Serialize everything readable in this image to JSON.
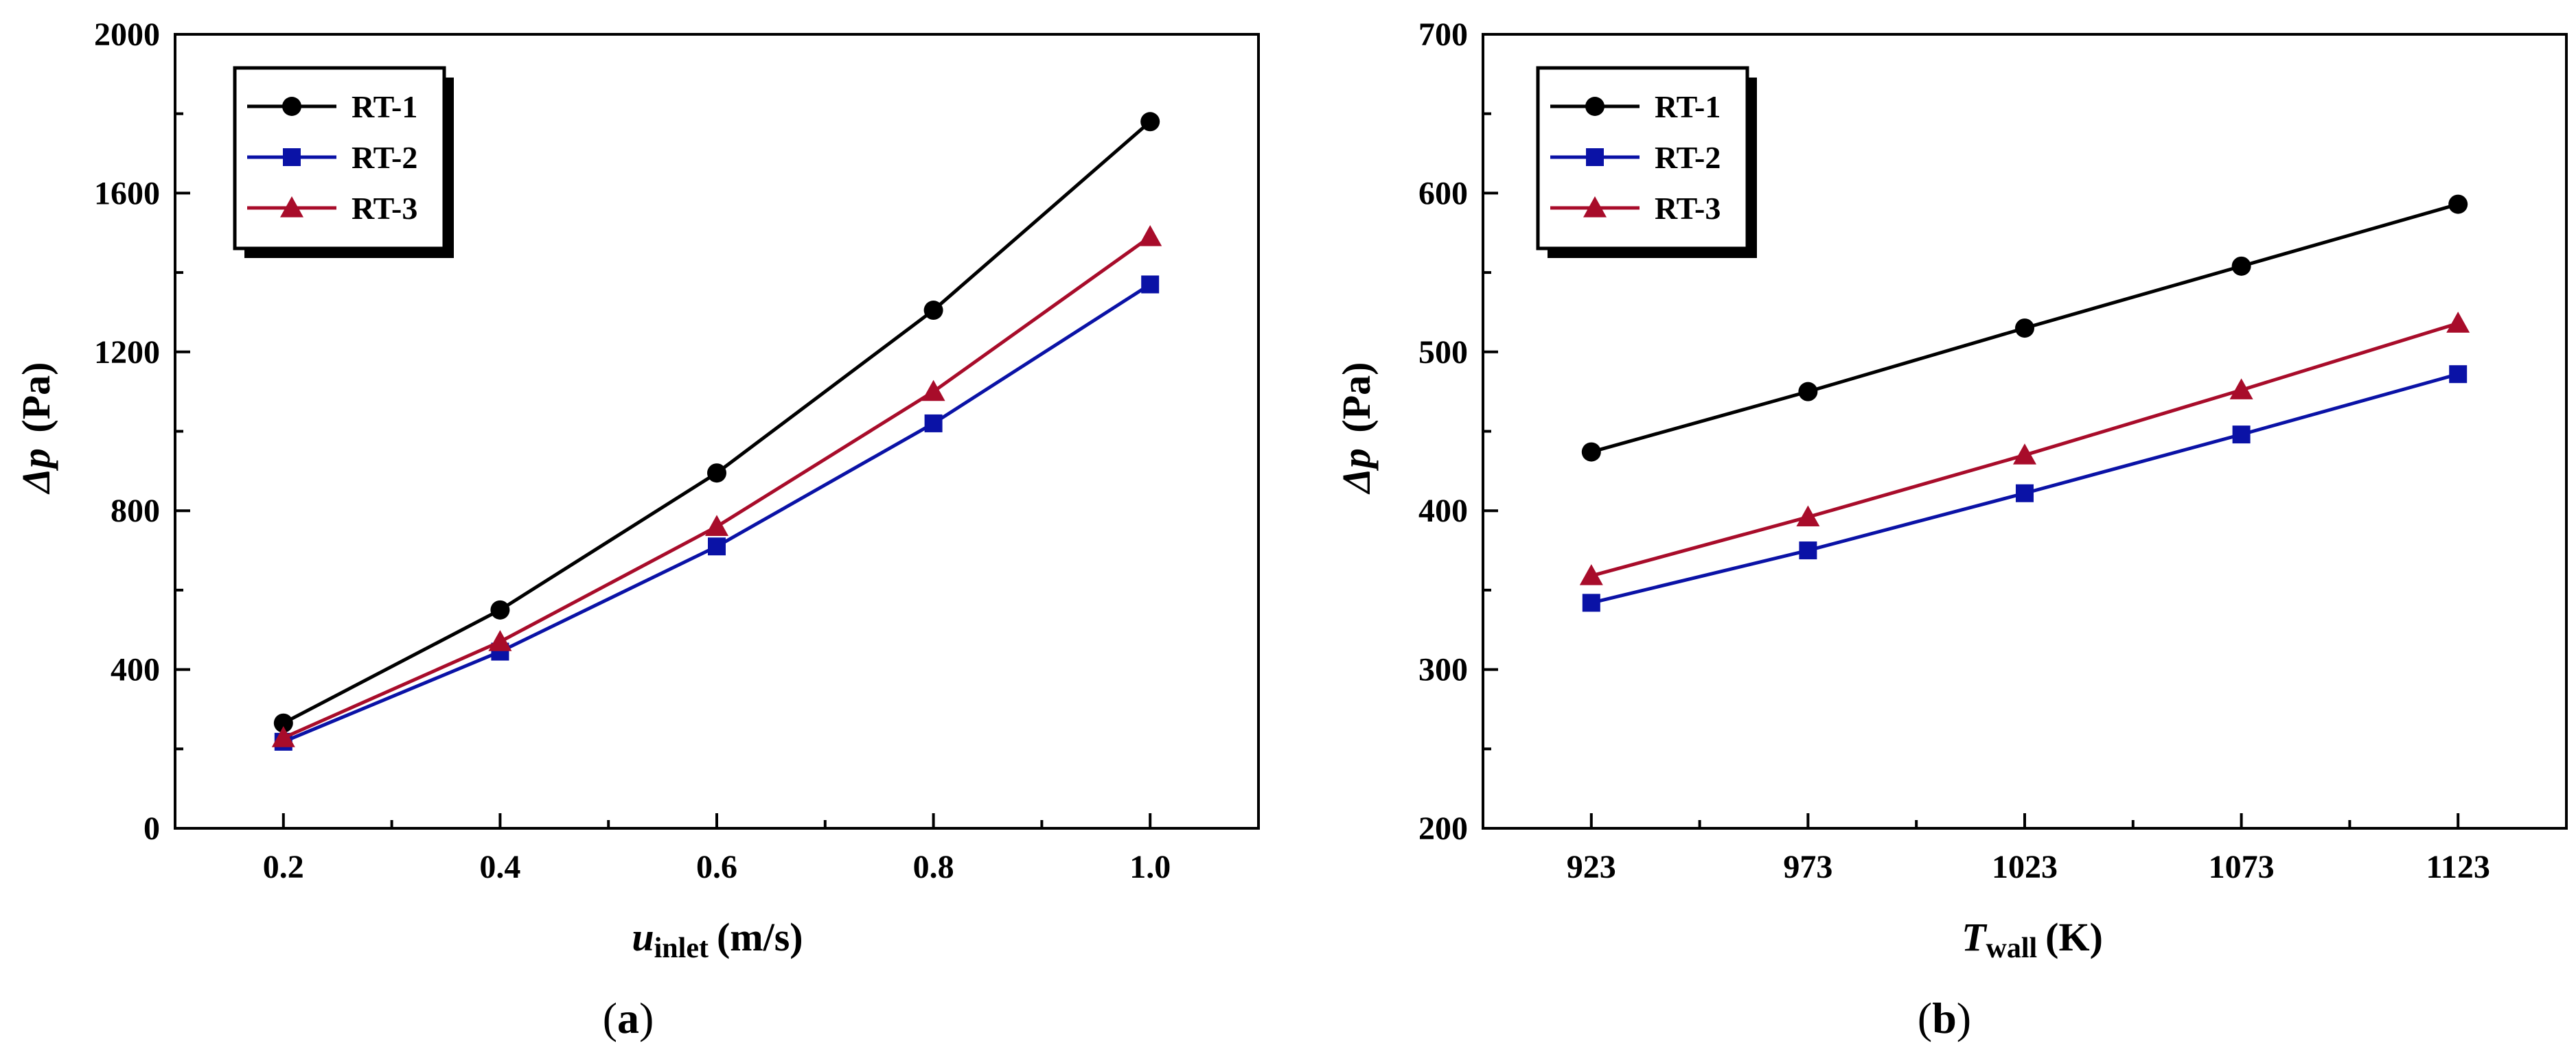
{
  "colors": {
    "rt1": "#000000",
    "rt2": "#0a12a6",
    "rt3": "#a80c2a",
    "axis": "#000000"
  },
  "chart_data": [
    {
      "id": "a",
      "type": "line",
      "panel_label": "(a)",
      "panel_letter": "a",
      "ylabel_symbol": "Δp",
      "ylabel_unit": "(Pa)",
      "xlabel_symbol": "u",
      "xlabel_sub": "inlet",
      "xlabel_unit": "(m/s)",
      "x": [
        0.2,
        0.4,
        0.6,
        0.8,
        1.0
      ],
      "x_ticks": [
        "0.2",
        "0.4",
        "0.6",
        "0.8",
        "1.0"
      ],
      "xlim": [
        0.1,
        1.1
      ],
      "ylim": [
        0,
        2000
      ],
      "y_ticks": [
        0,
        400,
        800,
        1200,
        1600,
        2000
      ],
      "y_minor": [
        200,
        600,
        1000,
        1400,
        1800
      ],
      "x_minor": [
        0.3,
        0.5,
        0.7,
        0.9
      ],
      "legend_position": "top-left",
      "series": [
        {
          "name": "RT-1",
          "marker": "circle",
          "values": [
            265,
            550,
            895,
            1305,
            1780
          ]
        },
        {
          "name": "RT-2",
          "marker": "square",
          "values": [
            218,
            445,
            710,
            1020,
            1370
          ]
        },
        {
          "name": "RT-3",
          "marker": "triangle",
          "values": [
            228,
            470,
            760,
            1100,
            1490
          ]
        }
      ]
    },
    {
      "id": "b",
      "type": "line",
      "panel_label": "(b)",
      "panel_letter": "b",
      "ylabel_symbol": "Δp",
      "ylabel_unit": "(Pa)",
      "xlabel_symbol": "T",
      "xlabel_sub": "wall",
      "xlabel_unit": "(K)",
      "x": [
        923,
        973,
        1023,
        1073,
        1123
      ],
      "x_ticks": [
        "923",
        "973",
        "1023",
        "1073",
        "1123"
      ],
      "xlim": [
        898,
        1148
      ],
      "ylim": [
        200,
        700
      ],
      "y_ticks": [
        200,
        300,
        400,
        500,
        600,
        700
      ],
      "y_minor": [
        250,
        350,
        450,
        550,
        650
      ],
      "x_minor": [
        948,
        998,
        1048,
        1098
      ],
      "legend_position": "top-left",
      "series": [
        {
          "name": "RT-1",
          "marker": "circle",
          "values": [
            437,
            475,
            515,
            554,
            593
          ]
        },
        {
          "name": "RT-2",
          "marker": "square",
          "values": [
            342,
            375,
            411,
            448,
            486
          ]
        },
        {
          "name": "RT-3",
          "marker": "triangle",
          "values": [
            359,
            396,
            435,
            476,
            518
          ]
        }
      ]
    }
  ]
}
